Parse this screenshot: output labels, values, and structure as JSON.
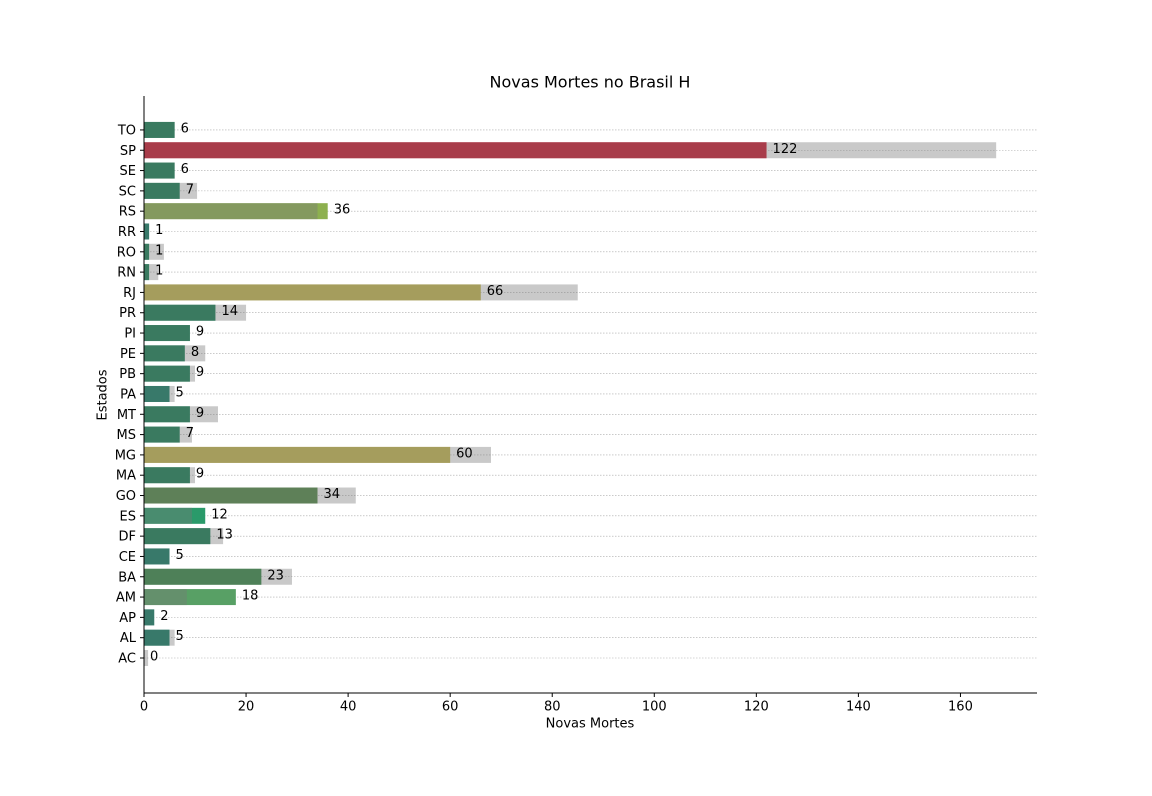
{
  "chart_data": {
    "type": "bar",
    "orientation": "horizontal",
    "title": "Novas Mortes no Brasil H",
    "x_label": "Novas Mortes",
    "y_label": "Estados",
    "categories": [
      "AC",
      "AL",
      "AP",
      "AM",
      "BA",
      "CE",
      "DF",
      "ES",
      "GO",
      "MA",
      "MG",
      "MS",
      "MT",
      "PA",
      "PB",
      "PE",
      "PI",
      "PR",
      "RJ",
      "RN",
      "RO",
      "RR",
      "RS",
      "SC",
      "SE",
      "SP",
      "TO"
    ],
    "series": [
      {
        "values": [
          0,
          5,
          2,
          18,
          23,
          5,
          13,
          12,
          34,
          9,
          60,
          7,
          9,
          5,
          9,
          8,
          9,
          14,
          66,
          1,
          1,
          1,
          36,
          7,
          6,
          122,
          6
        ],
        "colors": [
          "#5a5a5a",
          "#0e7a62",
          "#0e7a62",
          "#58a065",
          "#338544",
          "#0e7a62",
          "#117c51",
          "#2a9a6a",
          "#4d8643",
          "#117c51",
          "#c4b64c",
          "#117c51",
          "#117c51",
          "#0e7a62",
          "#117c51",
          "#117c51",
          "#117c51",
          "#117c51",
          "#c4b64c",
          "#117c51",
          "#117c51",
          "#0e7a62",
          "#8db04f",
          "#117c51",
          "#117c51",
          "#c9152c",
          "#117c51"
        ]
      },
      {
        "color": "#777777",
        "values": [
          0.8,
          6,
          2,
          8.4,
          29,
          5,
          15.5,
          9.4,
          41.5,
          10,
          68,
          9.4,
          14.5,
          6,
          10,
          12,
          9,
          20,
          85,
          2.8,
          3.9,
          1,
          34,
          10.4,
          6,
          167,
          6
        ]
      }
    ],
    "xlim": [
      0,
      175
    ],
    "xticks": [
      0,
      20,
      40,
      60,
      80,
      100,
      120,
      140,
      160
    ],
    "grid": true
  }
}
